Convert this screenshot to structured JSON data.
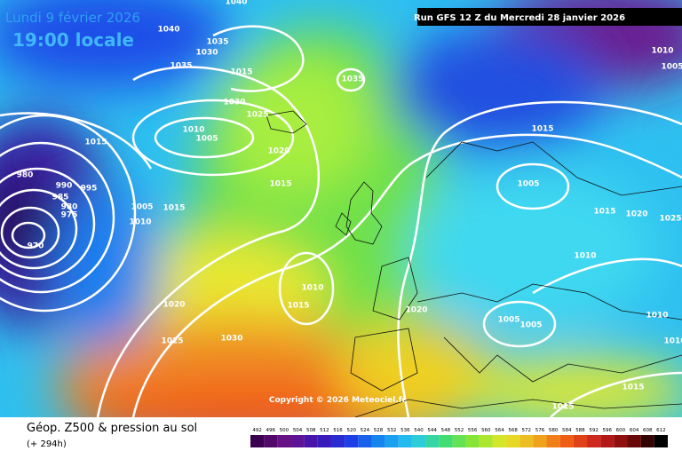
{
  "header": {
    "date": "Lundi 9 février 2026",
    "time": "19:00 locale"
  },
  "run": "Run GFS 12 Z du Mercredi 28 janvier 2026",
  "copyright": "Copyright © 2026 Meteociel.fr",
  "footer": {
    "title": "Géop. Z500 & pression au sol",
    "lead": "(+ 294h)"
  },
  "legend": {
    "labels": [
      492,
      496,
      500,
      504,
      508,
      512,
      516,
      520,
      524,
      528,
      532,
      536,
      540,
      544,
      548,
      552,
      556,
      560,
      564,
      568,
      572,
      576,
      580,
      584,
      588,
      592,
      596,
      600,
      604,
      608,
      612
    ]
  },
  "isobar_labels": [
    1040,
    1040,
    1035,
    1030,
    1035,
    1015,
    1035,
    1030,
    1025,
    1010,
    1005,
    1015,
    1020,
    1015,
    980,
    990,
    995,
    985,
    980,
    975,
    970,
    1005,
    1010,
    1015,
    1010,
    1015,
    1020,
    1025,
    1030,
    1020,
    1015,
    1005,
    1015,
    1020,
    1025,
    1010,
    1005,
    1005,
    1010,
    1010,
    1015,
    1015,
    1010,
    1005
  ]
}
